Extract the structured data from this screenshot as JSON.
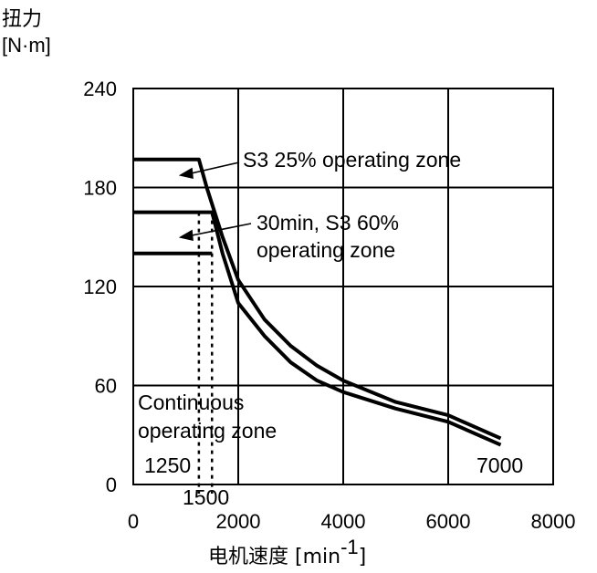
{
  "chart_data": {
    "type": "line",
    "ylabel": "扭力",
    "yunit": "[N·m]",
    "xlabel": "电机速度 [min",
    "xlabel_sup": "-1",
    "xlabel_end": "]",
    "xlim": [
      0,
      8000
    ],
    "ylim": [
      0,
      240
    ],
    "x_ticks": [
      "0",
      "2000",
      "4000",
      "6000",
      "8000"
    ],
    "y_ticks": [
      "0",
      "60",
      "120",
      "180",
      "240"
    ],
    "x_tick_values": [
      0,
      2000,
      4000,
      6000,
      8000
    ],
    "y_tick_values": [
      0,
      60,
      120,
      180,
      240
    ],
    "grid": true,
    "series": [
      {
        "name": "S3 25% operating zone",
        "points": [
          [
            0,
            197
          ],
          [
            1250,
            197
          ],
          [
            1400,
            180
          ],
          [
            1700,
            150
          ],
          [
            2000,
            124
          ],
          [
            2500,
            100
          ],
          [
            3000,
            84
          ],
          [
            3500,
            72
          ],
          [
            4000,
            63
          ],
          [
            5000,
            50
          ],
          [
            6000,
            42
          ],
          [
            7000,
            28
          ]
        ]
      },
      {
        "name": "30min, S3 60% operating zone",
        "points": [
          [
            0,
            165
          ],
          [
            1500,
            165
          ],
          [
            1700,
            140
          ],
          [
            2000,
            110
          ],
          [
            2500,
            90
          ],
          [
            3000,
            74
          ],
          [
            3500,
            63
          ],
          [
            4000,
            56
          ],
          [
            5000,
            46
          ],
          [
            6000,
            38
          ],
          [
            7000,
            24
          ]
        ]
      },
      {
        "name": "Continuous operating zone",
        "points": [
          [
            0,
            140
          ],
          [
            1500,
            140
          ]
        ]
      }
    ],
    "vertical_markers": [
      1250,
      1500
    ],
    "annotations": {
      "s3_25": "S3 25% operating zone",
      "s3_60_line1": "30min, S3 60%",
      "s3_60_line2": "operating zone",
      "cont_line1": "Continuous",
      "cont_line2": "operating zone",
      "marker_1250": "1250",
      "marker_1500": "1500",
      "end_7000": "7000"
    }
  }
}
